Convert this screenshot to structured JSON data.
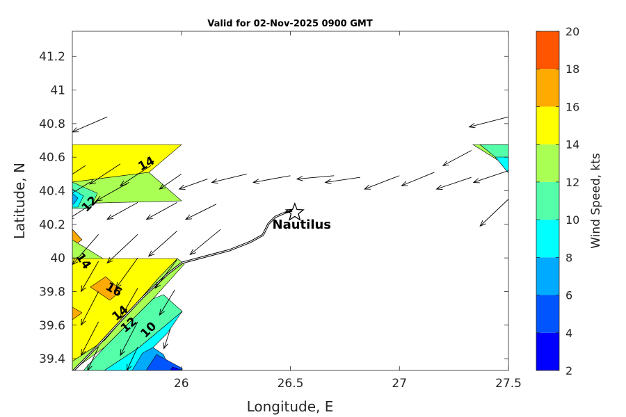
{
  "chart_data": {
    "type": "filled-contour-vector-map",
    "title": "Valid for 02-Nov-2025 0900 GMT",
    "xlabel": "Longitude, E",
    "ylabel": "Latitude, N",
    "xlim": [
      25.5,
      27.5
    ],
    "ylim": [
      39.33,
      41.35
    ],
    "xticks": [
      "26",
      "26.5",
      "27",
      "27.5"
    ],
    "xtick_values": [
      26,
      26.5,
      27,
      27.5
    ],
    "yticks": [
      "39.4",
      "39.6",
      "39.8",
      "40",
      "40.2",
      "40.4",
      "40.6",
      "40.8",
      "41",
      "41.2"
    ],
    "ytick_values": [
      39.4,
      39.6,
      39.8,
      40.0,
      40.2,
      40.4,
      40.6,
      40.8,
      41.0,
      41.2
    ],
    "colorbar": {
      "label": "Wind Speed, kts",
      "range": [
        2,
        20
      ],
      "ticks": [
        "2",
        "4",
        "6",
        "8",
        "10",
        "12",
        "14",
        "16",
        "18",
        "20"
      ],
      "tick_values": [
        2,
        4,
        6,
        8,
        10,
        12,
        14,
        16,
        18,
        20
      ],
      "colors": [
        "#0000ff",
        "#0055ff",
        "#00aaff",
        "#00ffff",
        "#55ffaa",
        "#aaff55",
        "#ffff00",
        "#ffaa00",
        "#ff5500"
      ]
    },
    "contour_labels": [
      {
        "text": "14",
        "lon": 25.84,
        "lat": 40.56,
        "angle": -28
      },
      {
        "text": "12",
        "lon": 25.58,
        "lat": 40.32,
        "angle": -45
      },
      {
        "text": "14",
        "lon": 25.55,
        "lat": 39.98,
        "angle": 55
      },
      {
        "text": "16",
        "lon": 25.69,
        "lat": 39.81,
        "angle": 30
      },
      {
        "text": "14",
        "lon": 25.72,
        "lat": 39.67,
        "angle": -40
      },
      {
        "text": "12",
        "lon": 25.76,
        "lat": 39.6,
        "angle": -40
      },
      {
        "text": "10",
        "lon": 25.85,
        "lat": 39.57,
        "angle": -45
      }
    ],
    "station": {
      "label": "Nautilus",
      "lon": 26.52,
      "lat": 40.27
    },
    "wind_vectors": [
      {
        "lon": 25.66,
        "lat": 40.84,
        "dlon": -0.16,
        "dlat": -0.09
      },
      {
        "lon": 27.5,
        "lat": 40.84,
        "dlon": -0.18,
        "dlat": -0.06
      },
      {
        "lon": 25.56,
        "lat": 40.55,
        "dlon": -0.14,
        "dlat": -0.12
      },
      {
        "lon": 25.72,
        "lat": 40.56,
        "dlon": -0.14,
        "dlat": -0.12
      },
      {
        "lon": 25.86,
        "lat": 40.55,
        "dlon": -0.14,
        "dlat": -0.12
      },
      {
        "lon": 27.5,
        "lat": 40.52,
        "dlon": -0.16,
        "dlat": -0.07
      },
      {
        "lon": 27.33,
        "lat": 40.64,
        "dlon": -0.13,
        "dlat": -0.09
      },
      {
        "lon": 25.58,
        "lat": 40.45,
        "dlon": -0.14,
        "dlat": -0.11
      },
      {
        "lon": 25.76,
        "lat": 40.45,
        "dlon": -0.15,
        "dlat": -0.11
      },
      {
        "lon": 26.0,
        "lat": 40.5,
        "dlon": -0.1,
        "dlat": -0.09
      },
      {
        "lon": 26.12,
        "lat": 40.47,
        "dlon": -0.13,
        "dlat": -0.06
      },
      {
        "lon": 26.3,
        "lat": 40.5,
        "dlon": -0.16,
        "dlat": -0.05
      },
      {
        "lon": 26.5,
        "lat": 40.49,
        "dlon": -0.17,
        "dlat": -0.04
      },
      {
        "lon": 26.7,
        "lat": 40.49,
        "dlon": -0.17,
        "dlat": -0.02
      },
      {
        "lon": 26.82,
        "lat": 40.48,
        "dlon": -0.16,
        "dlat": -0.03
      },
      {
        "lon": 27.0,
        "lat": 40.49,
        "dlon": -0.16,
        "dlat": -0.08
      },
      {
        "lon": 27.16,
        "lat": 40.51,
        "dlon": -0.15,
        "dlat": -0.08
      },
      {
        "lon": 27.33,
        "lat": 40.48,
        "dlon": -0.16,
        "dlat": -0.07
      },
      {
        "lon": 25.6,
        "lat": 40.33,
        "dlon": -0.12,
        "dlat": -0.1
      },
      {
        "lon": 25.8,
        "lat": 40.33,
        "dlon": -0.14,
        "dlat": -0.1
      },
      {
        "lon": 25.98,
        "lat": 40.33,
        "dlon": -0.14,
        "dlat": -0.1
      },
      {
        "lon": 26.16,
        "lat": 40.32,
        "dlon": -0.14,
        "dlat": -0.09
      },
      {
        "lon": 27.5,
        "lat": 40.35,
        "dlon": -0.13,
        "dlat": -0.16
      },
      {
        "lon": 25.62,
        "lat": 40.14,
        "dlon": -0.12,
        "dlat": -0.18
      },
      {
        "lon": 25.8,
        "lat": 40.14,
        "dlon": -0.14,
        "dlat": -0.17
      },
      {
        "lon": 25.98,
        "lat": 40.16,
        "dlon": -0.13,
        "dlat": -0.15
      },
      {
        "lon": 26.18,
        "lat": 40.17,
        "dlon": -0.14,
        "dlat": -0.15
      },
      {
        "lon": 25.62,
        "lat": 39.98,
        "dlon": -0.08,
        "dlat": -0.18
      },
      {
        "lon": 25.8,
        "lat": 40.0,
        "dlon": -0.1,
        "dlat": -0.18
      },
      {
        "lon": 25.98,
        "lat": 39.99,
        "dlon": -0.1,
        "dlat": -0.17
      },
      {
        "lon": 25.62,
        "lat": 39.8,
        "dlon": -0.08,
        "dlat": -0.2
      },
      {
        "lon": 25.8,
        "lat": 39.82,
        "dlon": -0.08,
        "dlat": -0.18
      },
      {
        "lon": 25.97,
        "lat": 39.81,
        "dlon": -0.07,
        "dlat": -0.15
      },
      {
        "lon": 25.62,
        "lat": 39.62,
        "dlon": -0.08,
        "dlat": -0.2
      },
      {
        "lon": 25.8,
        "lat": 39.62,
        "dlon": -0.08,
        "dlat": -0.2
      },
      {
        "lon": 25.95,
        "lat": 39.58,
        "dlon": -0.03,
        "dlat": -0.12
      },
      {
        "lon": 25.62,
        "lat": 39.47,
        "dlon": -0.05,
        "dlat": -0.14
      },
      {
        "lon": 25.8,
        "lat": 39.47,
        "dlon": -0.05,
        "dlat": -0.14
      }
    ]
  }
}
